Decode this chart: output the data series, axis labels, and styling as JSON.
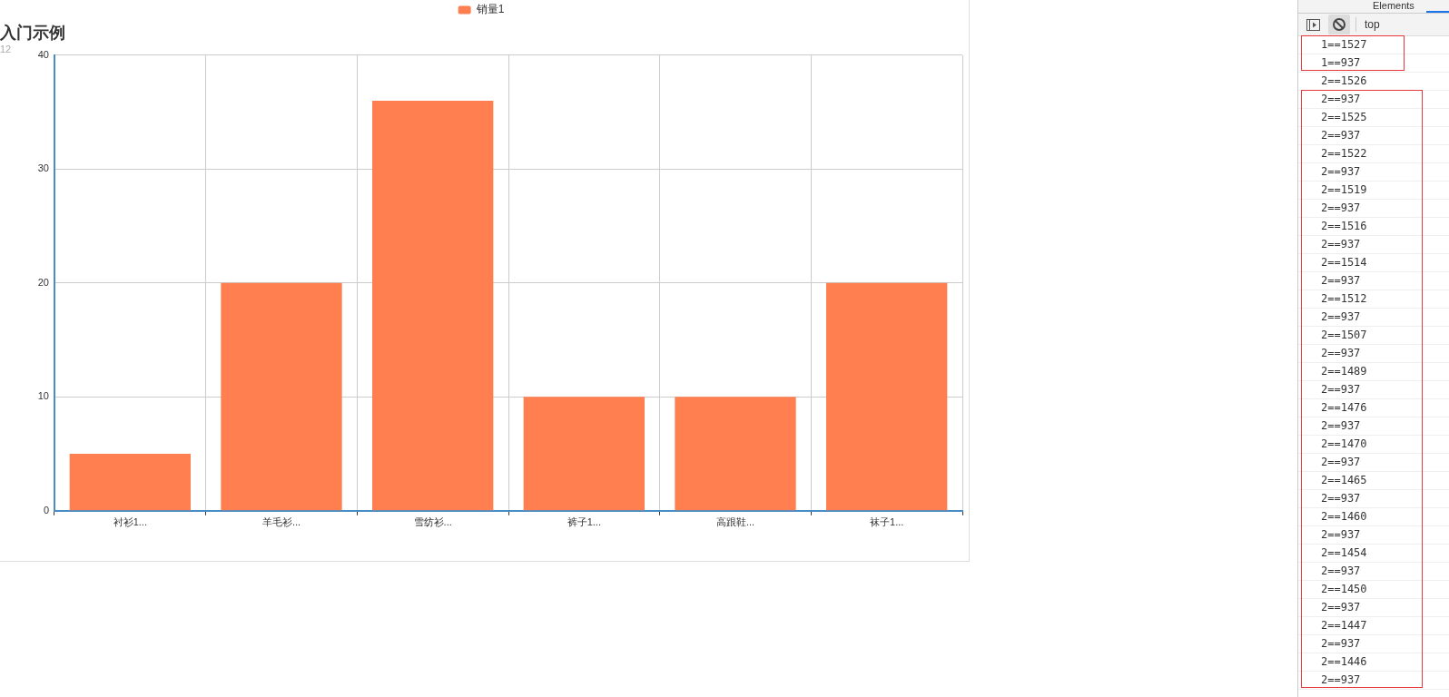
{
  "chart_data": [
    {
      "type": "bar",
      "title": "入门示例",
      "subtitle": "12",
      "categories": [
        "衬衫1...",
        "羊毛衫...",
        "雪纺衫...",
        "裤子1...",
        "高跟鞋...",
        "袜子1..."
      ],
      "series": [
        {
          "name": "销量1",
          "color": "#ff7f50",
          "values": [
            5,
            20,
            36,
            10,
            10,
            20
          ]
        }
      ],
      "ylim": [
        0,
        40
      ],
      "yticks": [
        0,
        10,
        20,
        30,
        40
      ],
      "grid": true,
      "legend": "top"
    },
    {
      "type": "other",
      "annotations": [
        "Elements",
        "top",
        "1==1527",
        "1==937",
        "2==1526",
        "2==937",
        "2==1525",
        "2==937",
        "2==1522",
        "2==937",
        "2==1519",
        "2==937",
        "2==1516",
        "2==937",
        "2==1514",
        "2==937",
        "2==1512",
        "2==937",
        "2==1507",
        "2==937",
        "2==1489",
        "2==937",
        "2==1476",
        "2==937",
        "2==1470",
        "2==937",
        "2==1465",
        "2==937",
        "2==1460",
        "2==937",
        "2==1454",
        "2==937",
        "2==1450",
        "2==937",
        "2==1447",
        "2==937",
        "2==1446",
        "2==937"
      ]
    }
  ]
}
